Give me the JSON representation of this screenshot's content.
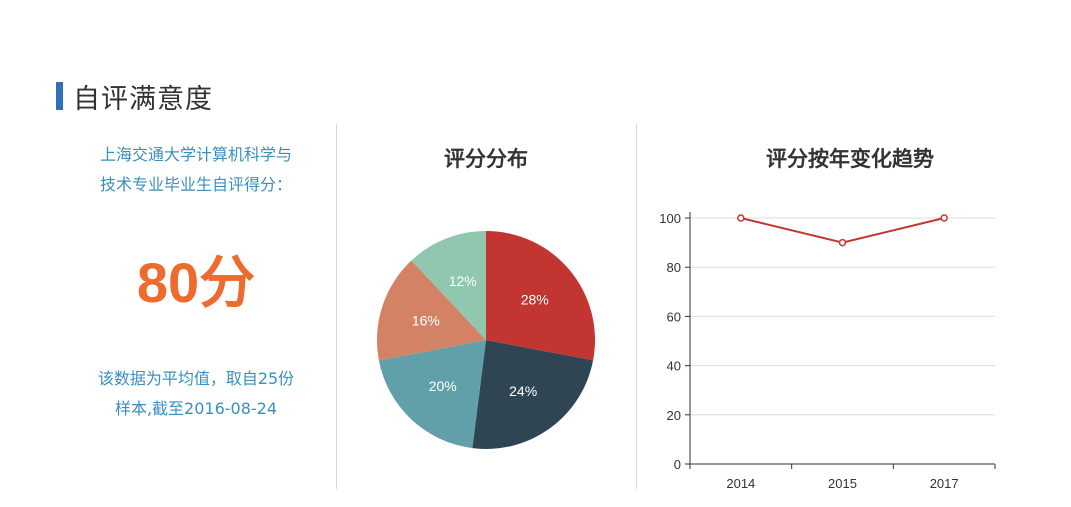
{
  "section": {
    "title": "自评满意度"
  },
  "summary": {
    "description_line1": "上海交通大学计算机科学与",
    "description_line2": "技术专业毕业生自评得分：",
    "score": "80分",
    "note_line1": "该数据为平均值，取自25份",
    "note_line2": "样本,截至2016-08-24"
  },
  "colors": {
    "accent_bar": "#2f6fc0",
    "score": "#ef6a2d",
    "text_blue": "#3a8fbf",
    "line": "#c23531"
  },
  "chart_data": [
    {
      "type": "pie",
      "title": "评分分布",
      "slices": [
        {
          "label": "28%",
          "value": 28,
          "color": "#c23531"
        },
        {
          "label": "24%",
          "value": 24,
          "color": "#2f4554"
        },
        {
          "label": "20%",
          "value": 20,
          "color": "#61a0a8"
        },
        {
          "label": "16%",
          "value": 16,
          "color": "#d48265"
        },
        {
          "label": "12%",
          "value": 12,
          "color": "#91c7ae"
        }
      ]
    },
    {
      "type": "line",
      "title": "评分按年变化趋势",
      "categories": [
        "2014",
        "2015",
        "2017"
      ],
      "series": [
        {
          "values": [
            100,
            90,
            100
          ],
          "color": "#c23531"
        }
      ],
      "ylim": [
        0,
        100
      ],
      "yticks": [
        "0",
        "20",
        "40",
        "60",
        "80",
        "100"
      ],
      "grid": true
    }
  ]
}
